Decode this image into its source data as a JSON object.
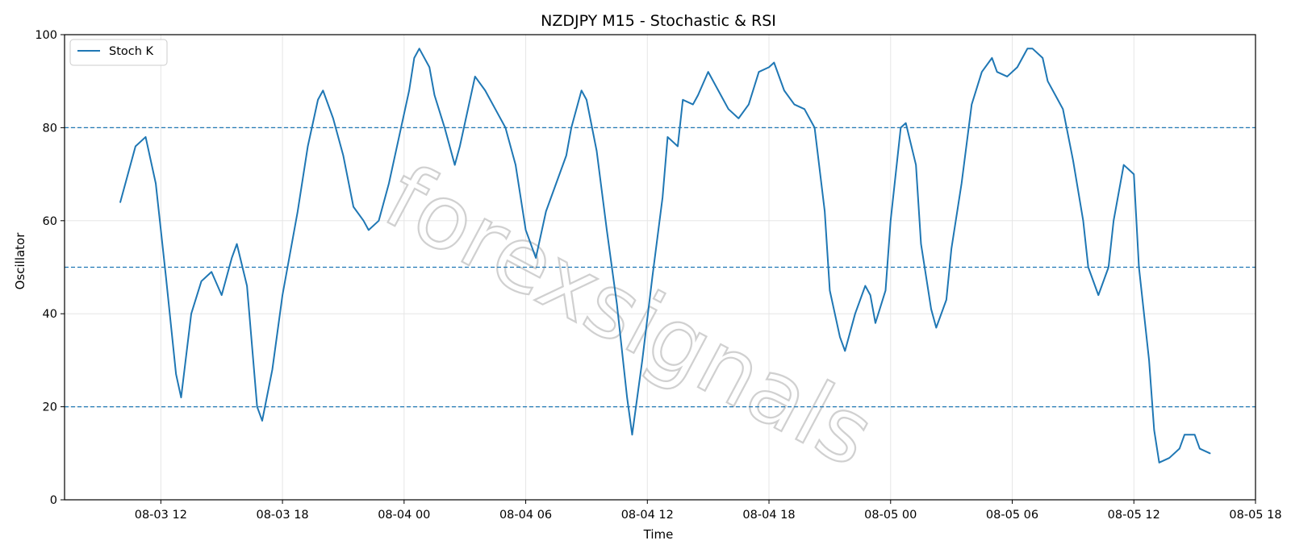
{
  "watermark": "forexsignals",
  "chart_data": {
    "type": "line",
    "title": "NZDJPY M15 - Stochastic & RSI",
    "xlabel": "Time",
    "ylabel": "Oscillator",
    "ylim": [
      0,
      100
    ],
    "xlim": [
      "2025-08-03 07:15",
      "2025-08-05 18:00"
    ],
    "yticks": [
      0,
      20,
      40,
      60,
      80,
      100
    ],
    "xticks": [
      {
        "t": "2025-08-03 12:00",
        "label": "08-03 12"
      },
      {
        "t": "2025-08-03 18:00",
        "label": "08-03 18"
      },
      {
        "t": "2025-08-04 00:00",
        "label": "08-04 00"
      },
      {
        "t": "2025-08-04 06:00",
        "label": "08-04 06"
      },
      {
        "t": "2025-08-04 12:00",
        "label": "08-04 12"
      },
      {
        "t": "2025-08-04 18:00",
        "label": "08-04 18"
      },
      {
        "t": "2025-08-05 00:00",
        "label": "08-05 00"
      },
      {
        "t": "2025-08-05 06:00",
        "label": "08-05 06"
      },
      {
        "t": "2025-08-05 12:00",
        "label": "08-05 12"
      },
      {
        "t": "2025-08-05 18:00",
        "label": "08-05 18"
      }
    ],
    "grid": true,
    "legend": "top-left",
    "reference_lines": [
      {
        "y": 80,
        "color": "#1f77b4",
        "style": "dashed"
      },
      {
        "y": 50,
        "color": "#1f77b4",
        "style": "dashed"
      },
      {
        "y": 20,
        "color": "#1f77b4",
        "style": "dashed"
      }
    ],
    "x_start": "2025-08-03 10:00",
    "x_end": "2025-08-05 15:45",
    "series": [
      {
        "name": "Stoch K",
        "color": "#1f77b4",
        "points": [
          [
            "2025-08-03 10:00",
            64
          ],
          [
            "2025-08-03 10:45",
            76
          ],
          [
            "2025-08-03 11:15",
            78
          ],
          [
            "2025-08-03 11:45",
            68
          ],
          [
            "2025-08-03 12:15",
            48
          ],
          [
            "2025-08-03 12:45",
            27
          ],
          [
            "2025-08-03 13:00",
            22
          ],
          [
            "2025-08-03 13:30",
            40
          ],
          [
            "2025-08-03 14:00",
            47
          ],
          [
            "2025-08-03 14:30",
            49
          ],
          [
            "2025-08-03 15:00",
            44
          ],
          [
            "2025-08-03 15:30",
            52
          ],
          [
            "2025-08-03 15:45",
            55
          ],
          [
            "2025-08-03 16:15",
            46
          ],
          [
            "2025-08-03 16:45",
            20
          ],
          [
            "2025-08-03 17:00",
            17
          ],
          [
            "2025-08-03 17:30",
            28
          ],
          [
            "2025-08-03 18:00",
            44
          ],
          [
            "2025-08-03 18:45",
            62
          ],
          [
            "2025-08-03 19:15",
            76
          ],
          [
            "2025-08-03 19:45",
            86
          ],
          [
            "2025-08-03 20:00",
            88
          ],
          [
            "2025-08-03 20:30",
            82
          ],
          [
            "2025-08-03 21:00",
            74
          ],
          [
            "2025-08-03 21:30",
            63
          ],
          [
            "2025-08-03 22:00",
            60
          ],
          [
            "2025-08-03 22:15",
            58
          ],
          [
            "2025-08-03 22:45",
            60
          ],
          [
            "2025-08-03 23:15",
            68
          ],
          [
            "2025-08-03 23:45",
            78
          ],
          [
            "2025-08-04 00:15",
            88
          ],
          [
            "2025-08-04 00:30",
            95
          ],
          [
            "2025-08-04 00:45",
            97
          ],
          [
            "2025-08-04 01:15",
            93
          ],
          [
            "2025-08-04 01:30",
            87
          ],
          [
            "2025-08-04 02:00",
            80
          ],
          [
            "2025-08-04 02:30",
            72
          ],
          [
            "2025-08-04 02:45",
            76
          ],
          [
            "2025-08-04 03:15",
            86
          ],
          [
            "2025-08-04 03:30",
            91
          ],
          [
            "2025-08-04 04:00",
            88
          ],
          [
            "2025-08-04 04:30",
            84
          ],
          [
            "2025-08-04 05:00",
            80
          ],
          [
            "2025-08-04 05:30",
            72
          ],
          [
            "2025-08-04 06:00",
            58
          ],
          [
            "2025-08-04 06:30",
            52
          ],
          [
            "2025-08-04 07:00",
            62
          ],
          [
            "2025-08-04 07:30",
            68
          ],
          [
            "2025-08-04 08:00",
            74
          ],
          [
            "2025-08-04 08:15",
            80
          ],
          [
            "2025-08-04 08:45",
            88
          ],
          [
            "2025-08-04 09:00",
            86
          ],
          [
            "2025-08-04 09:30",
            75
          ],
          [
            "2025-08-04 10:00",
            58
          ],
          [
            "2025-08-04 10:30",
            42
          ],
          [
            "2025-08-04 11:00",
            22
          ],
          [
            "2025-08-04 11:15",
            14
          ],
          [
            "2025-08-04 11:45",
            30
          ],
          [
            "2025-08-04 12:15",
            48
          ],
          [
            "2025-08-04 12:45",
            65
          ],
          [
            "2025-08-04 13:00",
            78
          ],
          [
            "2025-08-04 13:30",
            76
          ],
          [
            "2025-08-04 13:45",
            86
          ],
          [
            "2025-08-04 14:15",
            85
          ],
          [
            "2025-08-04 14:30",
            87
          ],
          [
            "2025-08-04 15:00",
            92
          ],
          [
            "2025-08-04 15:30",
            88
          ],
          [
            "2025-08-04 16:00",
            84
          ],
          [
            "2025-08-04 16:30",
            82
          ],
          [
            "2025-08-04 17:00",
            85
          ],
          [
            "2025-08-04 17:30",
            92
          ],
          [
            "2025-08-04 18:00",
            93
          ],
          [
            "2025-08-04 18:15",
            94
          ],
          [
            "2025-08-04 18:45",
            88
          ],
          [
            "2025-08-04 19:15",
            85
          ],
          [
            "2025-08-04 19:45",
            84
          ],
          [
            "2025-08-04 20:15",
            80
          ],
          [
            "2025-08-04 20:45",
            62
          ],
          [
            "2025-08-04 21:00",
            45
          ],
          [
            "2025-08-04 21:30",
            35
          ],
          [
            "2025-08-04 21:45",
            32
          ],
          [
            "2025-08-04 22:15",
            40
          ],
          [
            "2025-08-04 22:45",
            46
          ],
          [
            "2025-08-04 23:00",
            44
          ],
          [
            "2025-08-04 23:15",
            38
          ],
          [
            "2025-08-04 23:45",
            45
          ],
          [
            "2025-08-05 00:00",
            60
          ],
          [
            "2025-08-05 00:30",
            80
          ],
          [
            "2025-08-05 00:45",
            81
          ],
          [
            "2025-08-05 01:15",
            72
          ],
          [
            "2025-08-05 01:30",
            55
          ],
          [
            "2025-08-05 02:00",
            41
          ],
          [
            "2025-08-05 02:15",
            37
          ],
          [
            "2025-08-05 02:45",
            43
          ],
          [
            "2025-08-05 03:00",
            54
          ],
          [
            "2025-08-05 03:30",
            68
          ],
          [
            "2025-08-05 04:00",
            85
          ],
          [
            "2025-08-05 04:30",
            92
          ],
          [
            "2025-08-05 05:00",
            95
          ],
          [
            "2025-08-05 05:15",
            92
          ],
          [
            "2025-08-05 05:45",
            91
          ],
          [
            "2025-08-05 06:15",
            93
          ],
          [
            "2025-08-05 06:45",
            97
          ],
          [
            "2025-08-05 07:00",
            97
          ],
          [
            "2025-08-05 07:30",
            95
          ],
          [
            "2025-08-05 07:45",
            90
          ],
          [
            "2025-08-05 08:15",
            86
          ],
          [
            "2025-08-05 08:30",
            84
          ],
          [
            "2025-08-05 09:00",
            73
          ],
          [
            "2025-08-05 09:30",
            60
          ],
          [
            "2025-08-05 09:45",
            50
          ],
          [
            "2025-08-05 10:15",
            44
          ],
          [
            "2025-08-05 10:45",
            50
          ],
          [
            "2025-08-05 11:00",
            60
          ],
          [
            "2025-08-05 11:30",
            72
          ],
          [
            "2025-08-05 12:00",
            70
          ],
          [
            "2025-08-05 12:15",
            50
          ],
          [
            "2025-08-05 12:45",
            30
          ],
          [
            "2025-08-05 13:00",
            15
          ],
          [
            "2025-08-05 13:15",
            8
          ],
          [
            "2025-08-05 13:45",
            9
          ],
          [
            "2025-08-05 14:15",
            11
          ],
          [
            "2025-08-05 14:30",
            14
          ],
          [
            "2025-08-05 15:00",
            14
          ],
          [
            "2025-08-05 15:15",
            11
          ],
          [
            "2025-08-05 15:45",
            10
          ]
        ]
      }
    ]
  }
}
